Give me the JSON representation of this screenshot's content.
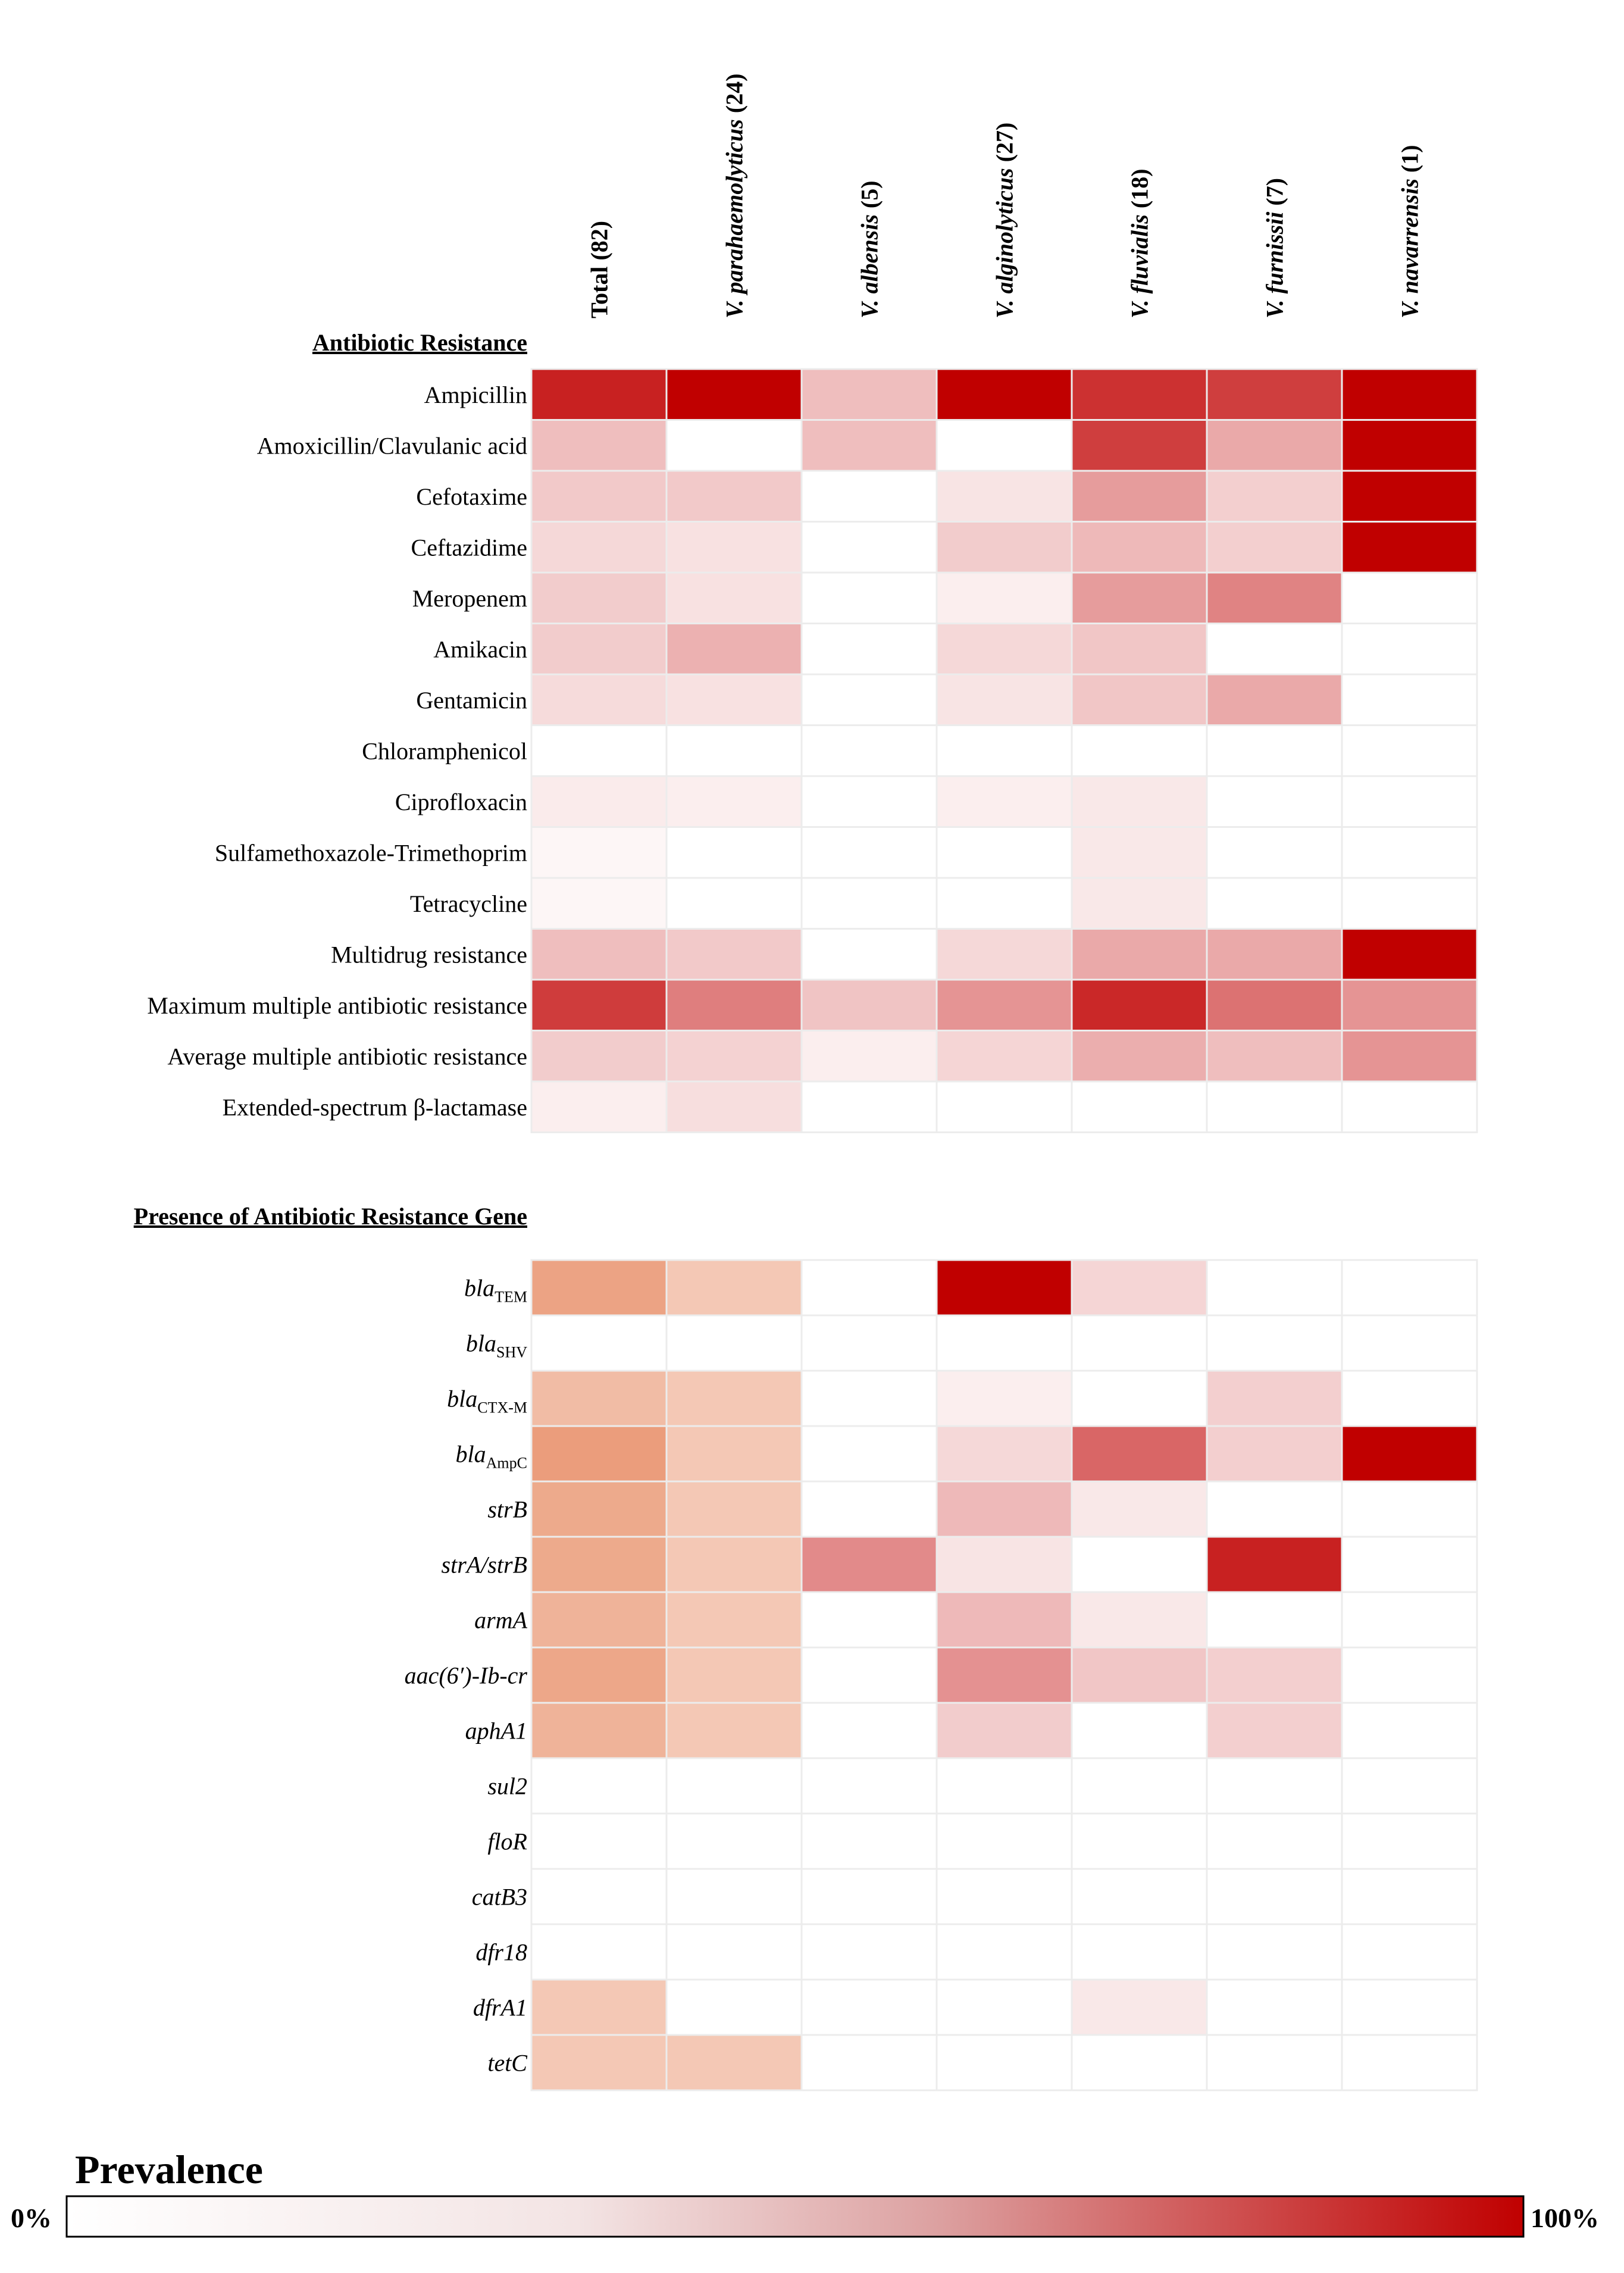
{
  "chart_data": {
    "type": "heatmap",
    "columns": [
      "Total (82)",
      "V. parahaemolyticus (24)",
      "V. albensis (5)",
      "V. alginolyticus (27)",
      "V. fluvialis (18)",
      "V. furnissii (7)",
      "V. navarrensis (1)"
    ],
    "colorscale": {
      "title": "Prevalence",
      "min_label": "0%",
      "max_label": "100%",
      "range": [
        0,
        100
      ],
      "low_color": "#ffffff",
      "high_color": "#c00000",
      "gene_color": "#e8906a"
    },
    "sections": [
      {
        "title": "Antibiotic Resistance",
        "palette": "red",
        "rows": [
          {
            "label": "Ampicillin",
            "values": [
              85,
              100,
              20,
              100,
              78,
              72,
              100
            ]
          },
          {
            "label": "Amoxicillin/Clavulanic acid",
            "values": [
              20,
              0,
              20,
              0,
              72,
              28,
              100
            ]
          },
          {
            "label": "Cefotaxime",
            "values": [
              16,
              16,
              0,
              7,
              33,
              14,
              100
            ]
          },
          {
            "label": "Ceftazidime",
            "values": [
              11,
              8,
              0,
              15,
              22,
              14,
              100
            ]
          },
          {
            "label": "Meropenem",
            "values": [
              15,
              8,
              0,
              4,
              33,
              43,
              0
            ]
          },
          {
            "label": "Amikacin",
            "values": [
              15,
              25,
              0,
              11,
              17,
              0,
              0
            ]
          },
          {
            "label": "Gentamicin",
            "values": [
              10,
              8,
              0,
              7,
              17,
              28,
              0
            ]
          },
          {
            "label": "Chloramphenicol",
            "values": [
              0,
              0,
              0,
              0,
              0,
              0,
              0
            ]
          },
          {
            "label": "Ciprofloxacin",
            "values": [
              5,
              4,
              0,
              4,
              6,
              0,
              0
            ]
          },
          {
            "label": "Sulfamethoxazole-Trimethoprim",
            "values": [
              2,
              0,
              0,
              0,
              6,
              0,
              0
            ]
          },
          {
            "label": "Tetracycline",
            "values": [
              2,
              0,
              0,
              0,
              6,
              0,
              0
            ]
          },
          {
            "label": "Multidrug resistance",
            "values": [
              20,
              16,
              0,
              11,
              28,
              28,
              100
            ]
          },
          {
            "label": "Maximum multiple antibiotic resistance",
            "values": [
              73,
              45,
              18,
              36,
              82,
              50,
              36
            ]
          },
          {
            "label": "Average multiple antibiotic resistance",
            "values": [
              15,
              13,
              4,
              12,
              26,
              20,
              36
            ]
          },
          {
            "label": "Extended-spectrum β-lactamase",
            "values": [
              4,
              9,
              0,
              0,
              0,
              0,
              0
            ]
          }
        ]
      },
      {
        "title": "Presence of Antibiotic Resistance Gene",
        "palette": "mixed",
        "rows": [
          {
            "label": "bla",
            "sub": "TEM",
            "values": [
              75,
              45,
              0,
              100,
              12,
              0,
              0
            ],
            "palettes": [
              "gene",
              "gene",
              "red",
              "red",
              "red",
              "red",
              "red"
            ]
          },
          {
            "label": "bla",
            "sub": "SHV",
            "values": [
              0,
              0,
              0,
              0,
              0,
              0,
              0
            ]
          },
          {
            "label": "bla",
            "sub": "CTX-M",
            "values": [
              55,
              45,
              0,
              4,
              0,
              14,
              0
            ],
            "palettes": [
              "gene",
              "gene",
              "red",
              "red",
              "red",
              "red",
              "red"
            ]
          },
          {
            "label": "bla",
            "sub": "AmpC",
            "values": [
              80,
              45,
              0,
              11,
              55,
              14,
              100
            ],
            "palettes": [
              "gene",
              "gene",
              "red",
              "red",
              "red",
              "red",
              "red"
            ]
          },
          {
            "label": "strB",
            "values": [
              70,
              45,
              0,
              22,
              6,
              0,
              0
            ],
            "palettes": [
              "gene",
              "gene",
              "red",
              "red",
              "red",
              "red",
              "red"
            ]
          },
          {
            "label": "strA/strB",
            "values": [
              70,
              45,
              40,
              7,
              0,
              85,
              0
            ],
            "palettes": [
              "gene",
              "gene",
              "red",
              "red",
              "red",
              "red",
              "red"
            ]
          },
          {
            "label": "armA",
            "values": [
              62,
              45,
              0,
              22,
              6,
              0,
              0
            ],
            "palettes": [
              "gene",
              "gene",
              "red",
              "red",
              "red",
              "red",
              "red"
            ]
          },
          {
            "label": "aac(6′)-Ib-cr",
            "values": [
              72,
              45,
              0,
              37,
              17,
              14,
              0
            ],
            "palettes": [
              "gene",
              "gene",
              "red",
              "red",
              "red",
              "red",
              "red"
            ]
          },
          {
            "label": "aphA1",
            "values": [
              62,
              45,
              0,
              15,
              0,
              14,
              0
            ],
            "palettes": [
              "gene",
              "gene",
              "red",
              "red",
              "red",
              "red",
              "red"
            ]
          },
          {
            "label": "sul2",
            "values": [
              0,
              0,
              0,
              0,
              0,
              0,
              0
            ]
          },
          {
            "label": "floR",
            "values": [
              0,
              0,
              0,
              0,
              0,
              0,
              0
            ]
          },
          {
            "label": "catB3",
            "values": [
              0,
              0,
              0,
              0,
              0,
              0,
              0
            ]
          },
          {
            "label": "dfr18",
            "values": [
              0,
              0,
              0,
              0,
              0,
              0,
              0
            ]
          },
          {
            "label": "dfrA1",
            "values": [
              45,
              0,
              0,
              0,
              6,
              0,
              0
            ],
            "palettes": [
              "gene",
              "gene",
              "red",
              "red",
              "red",
              "red",
              "red"
            ]
          },
          {
            "label": "tetC",
            "values": [
              45,
              45,
              0,
              0,
              0,
              0,
              0
            ],
            "palettes": [
              "gene",
              "gene",
              "red",
              "red",
              "red",
              "red",
              "red"
            ]
          }
        ]
      }
    ]
  }
}
